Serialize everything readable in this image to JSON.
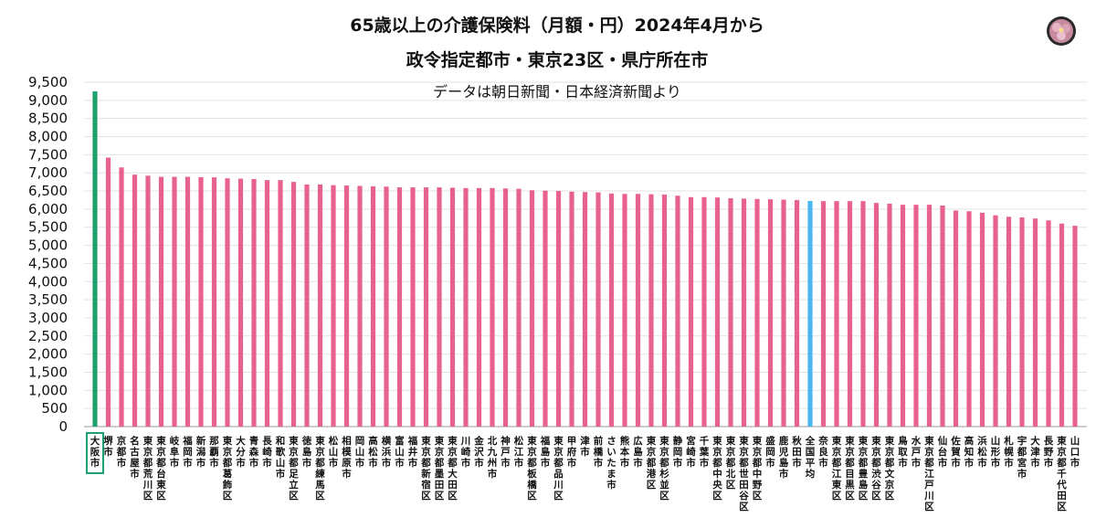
{
  "chart_data": {
    "type": "bar",
    "title_line1": "65歳以上の介護保険料（月額・円）2024年4月から",
    "title_line2": "政令指定都市・東京23区・県庁所在市",
    "subtitle": "データは朝日新聞・日本経済新聞より",
    "ylim": [
      0,
      9500
    ],
    "yticks": [
      "0",
      "500",
      "1,000",
      "1,500",
      "2,000",
      "2,500",
      "3,000",
      "3,500",
      "4,000",
      "4,500",
      "5,000",
      "5,500",
      "6,000",
      "6,500",
      "7,000",
      "7,500",
      "8,000",
      "8,500",
      "9,000",
      "9,500"
    ],
    "grid": true,
    "colors": {
      "default": "#e8628e",
      "highlight": "#1aa36f",
      "average": "#4ab8ee"
    },
    "highlight_category": "大阪市",
    "average_category": "全国平均",
    "categories": [
      "大阪市",
      "堺市",
      "京都市",
      "名古屋市",
      "東京都荒川区",
      "東京都台東区",
      "岐阜市",
      "福岡市",
      "新潟市",
      "那覇市",
      "東京都葛飾区",
      "大分市",
      "青森市",
      "長崎市",
      "和歌山市",
      "東京都足立区",
      "徳島市",
      "東京都練馬区",
      "松山市",
      "相模原市",
      "岡山市",
      "高松市",
      "横浜市",
      "富山市",
      "福井市",
      "東京都新宿区",
      "東京都墨田区",
      "東京都大田区",
      "川崎市",
      "金沢市",
      "北九州市",
      "神戸市",
      "松江市",
      "東京都板橋区",
      "福島市",
      "東京都品川区",
      "甲府市",
      "津市",
      "前橋市",
      "さいたま市",
      "熊本市",
      "広島市",
      "東京都港区",
      "東京都杉並区",
      "静岡市",
      "宮崎市",
      "千葉市",
      "東京都中央区",
      "東京都北区",
      "東京都世田谷区",
      "東京都中野区",
      "盛岡市",
      "鹿児島市",
      "秋田市",
      "全国平均",
      "奈良市",
      "東京都江東区",
      "東京都目黒区",
      "東京都豊島区",
      "東京都渋谷区",
      "東京都文京区",
      "鳥取市",
      "水戸市",
      "東京都江戸川区",
      "仙台市",
      "佐賀市",
      "高知市",
      "浜松市",
      "山形市",
      "札幌市",
      "宇都宮市",
      "大津市",
      "長野市",
      "東京都千代田区",
      "山口市"
    ],
    "values": [
      9249,
      7420,
      7150,
      6950,
      6920,
      6890,
      6890,
      6890,
      6880,
      6875,
      6850,
      6840,
      6830,
      6800,
      6800,
      6750,
      6680,
      6680,
      6660,
      6650,
      6640,
      6630,
      6620,
      6600,
      6600,
      6600,
      6600,
      6590,
      6580,
      6580,
      6580,
      6570,
      6560,
      6520,
      6510,
      6500,
      6480,
      6470,
      6460,
      6430,
      6420,
      6420,
      6410,
      6400,
      6370,
      6330,
      6330,
      6320,
      6300,
      6290,
      6280,
      6270,
      6260,
      6250,
      6225,
      6220,
      6220,
      6220,
      6220,
      6170,
      6150,
      6120,
      6120,
      6120,
      6100,
      5960,
      5940,
      5900,
      5830,
      5790,
      5770,
      5740,
      5690,
      5600,
      5540
    ]
  }
}
